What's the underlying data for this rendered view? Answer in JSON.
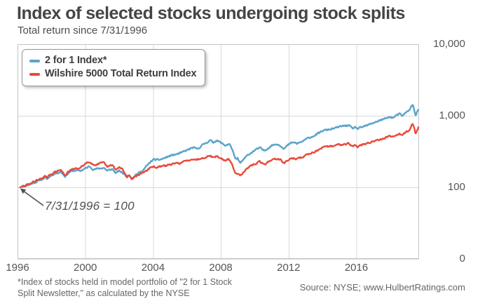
{
  "header": {
    "title": "Index of selected stocks undergoing stock splits",
    "subtitle": "Total return since 7/31/1996"
  },
  "legend": {
    "items": [
      {
        "label": "2 for 1 Index*",
        "color": "#5BA4C9"
      },
      {
        "label": "Wilshire 5000 Total Return Index",
        "color": "#E84A3B"
      }
    ]
  },
  "annotation": {
    "text": "7/31/1996 = 100"
  },
  "footer": {
    "note_line1": "*Index of stocks held in model portfolio of \"2 for 1 Stock",
    "note_line2": "Split Newsletter,\" as calculated by the NYSE",
    "source": "Source: NYSE; www.HulbertRatings.com"
  },
  "colors": {
    "grid": "#d9d9d9",
    "plot_border": "#c4c4c4",
    "annotation": "#4f4f4f"
  },
  "chart_data": {
    "type": "line",
    "title": "Index of selected stocks undergoing stock splits",
    "subtitle": "Total return since 7/31/1996",
    "y_scale": "log",
    "x_range": [
      1996,
      2019.7
    ],
    "y_log_range": [
      10,
      10000
    ],
    "grid": true,
    "legend_position": "top-left",
    "x_ticks": [
      {
        "value": 1996,
        "label": "1996"
      },
      {
        "value": 2000,
        "label": "2000"
      },
      {
        "value": 2004,
        "label": "2004"
      },
      {
        "value": 2008,
        "label": "2008"
      },
      {
        "value": 2012,
        "label": "2012"
      },
      {
        "value": 2016,
        "label": "2016"
      }
    ],
    "y_ticks": [
      {
        "value": 10000,
        "label": "10,000"
      },
      {
        "value": 1000,
        "label": "1,000"
      },
      {
        "value": 100,
        "label": "100"
      },
      {
        "value": 10,
        "label": "0"
      }
    ],
    "base_note": "7/31/1996 = 100",
    "series": [
      {
        "name": "2 for 1 Index*",
        "color": "#5BA4C9",
        "seed": 11,
        "points": [
          [
            1996.15,
            100
          ],
          [
            1996.6,
            107
          ],
          [
            1997,
            117
          ],
          [
            1997.4,
            128
          ],
          [
            1997.6,
            136
          ],
          [
            1997.75,
            130
          ],
          [
            1998,
            148
          ],
          [
            1998.3,
            158
          ],
          [
            1998.55,
            166
          ],
          [
            1998.8,
            143
          ],
          [
            1999.1,
            165
          ],
          [
            1999.4,
            172
          ],
          [
            1999.7,
            170
          ],
          [
            2000,
            183
          ],
          [
            2000.25,
            196
          ],
          [
            2000.5,
            178
          ],
          [
            2000.8,
            183
          ],
          [
            2001.1,
            188
          ],
          [
            2001.3,
            170
          ],
          [
            2001.6,
            180
          ],
          [
            2001.8,
            158
          ],
          [
            2002,
            170
          ],
          [
            2002.2,
            160
          ],
          [
            2002.45,
            140
          ],
          [
            2002.6,
            148
          ],
          [
            2002.75,
            136
          ],
          [
            2003,
            152
          ],
          [
            2003.3,
            165
          ],
          [
            2003.6,
            195
          ],
          [
            2004,
            245
          ],
          [
            2004.3,
            240
          ],
          [
            2004.6,
            252
          ],
          [
            2005,
            275
          ],
          [
            2005.4,
            290
          ],
          [
            2005.7,
            305
          ],
          [
            2006,
            330
          ],
          [
            2006.35,
            358
          ],
          [
            2006.6,
            342
          ],
          [
            2007,
            402
          ],
          [
            2007.35,
            452
          ],
          [
            2007.55,
            425
          ],
          [
            2007.75,
            455
          ],
          [
            2008,
            420
          ],
          [
            2008.25,
            385
          ],
          [
            2008.5,
            405
          ],
          [
            2008.7,
            330
          ],
          [
            2008.85,
            245
          ],
          [
            2009,
            252
          ],
          [
            2009.15,
            215
          ],
          [
            2009.4,
            255
          ],
          [
            2009.7,
            295
          ],
          [
            2010,
            330
          ],
          [
            2010.3,
            355
          ],
          [
            2010.55,
            325
          ],
          [
            2010.8,
            355
          ],
          [
            2011,
            385
          ],
          [
            2011.3,
            405
          ],
          [
            2011.55,
            380
          ],
          [
            2011.75,
            350
          ],
          [
            2012,
            395
          ],
          [
            2012.25,
            425
          ],
          [
            2012.5,
            408
          ],
          [
            2012.75,
            430
          ],
          [
            2013,
            465
          ],
          [
            2013.4,
            515
          ],
          [
            2013.8,
            570
          ],
          [
            2014,
            615
          ],
          [
            2014.4,
            645
          ],
          [
            2014.7,
            665
          ],
          [
            2015,
            700
          ],
          [
            2015.3,
            725
          ],
          [
            2015.55,
            735
          ],
          [
            2015.75,
            660
          ],
          [
            2015.95,
            690
          ],
          [
            2016.1,
            655
          ],
          [
            2016.4,
            700
          ],
          [
            2016.7,
            740
          ],
          [
            2017,
            800
          ],
          [
            2017.4,
            862
          ],
          [
            2017.8,
            925
          ],
          [
            2018,
            975
          ],
          [
            2018.12,
            930
          ],
          [
            2018.35,
            1000
          ],
          [
            2018.55,
            1060
          ],
          [
            2018.68,
            990
          ],
          [
            2018.9,
            1090
          ],
          [
            2019.1,
            1200
          ],
          [
            2019.33,
            1420
          ],
          [
            2019.42,
            1180
          ],
          [
            2019.5,
            1030
          ],
          [
            2019.58,
            1130
          ],
          [
            2019.66,
            1210
          ]
        ]
      },
      {
        "name": "Wilshire 5000 Total Return Index",
        "color": "#E84A3B",
        "seed": 29,
        "points": [
          [
            1996.15,
            100
          ],
          [
            1996.6,
            109
          ],
          [
            1997,
            121
          ],
          [
            1997.4,
            133
          ],
          [
            1997.6,
            142
          ],
          [
            1997.75,
            135
          ],
          [
            1998,
            155
          ],
          [
            1998.3,
            166
          ],
          [
            1998.55,
            175
          ],
          [
            1998.8,
            148
          ],
          [
            1999.1,
            172
          ],
          [
            1999.4,
            182
          ],
          [
            1999.7,
            185
          ],
          [
            2000,
            215
          ],
          [
            2000.25,
            231
          ],
          [
            2000.5,
            205
          ],
          [
            2000.8,
            212
          ],
          [
            2001.1,
            220
          ],
          [
            2001.3,
            192
          ],
          [
            2001.6,
            205
          ],
          [
            2001.8,
            175
          ],
          [
            2002,
            190
          ],
          [
            2002.2,
            178
          ],
          [
            2002.45,
            140
          ],
          [
            2002.6,
            150
          ],
          [
            2002.75,
            131
          ],
          [
            2003,
            145
          ],
          [
            2003.3,
            155
          ],
          [
            2003.6,
            172
          ],
          [
            2004,
            194
          ],
          [
            2004.3,
            190
          ],
          [
            2004.6,
            198
          ],
          [
            2005,
            208
          ],
          [
            2005.4,
            215
          ],
          [
            2005.7,
            222
          ],
          [
            2006,
            235
          ],
          [
            2006.35,
            252
          ],
          [
            2006.6,
            244
          ],
          [
            2007,
            262
          ],
          [
            2007.35,
            278
          ],
          [
            2007.55,
            262
          ],
          [
            2007.75,
            272
          ],
          [
            2008,
            255
          ],
          [
            2008.25,
            235
          ],
          [
            2008.5,
            245
          ],
          [
            2008.7,
            200
          ],
          [
            2008.85,
            155
          ],
          [
            2009,
            160
          ],
          [
            2009.15,
            148
          ],
          [
            2009.4,
            170
          ],
          [
            2009.7,
            192
          ],
          [
            2010,
            212
          ],
          [
            2010.3,
            228
          ],
          [
            2010.55,
            208
          ],
          [
            2010.8,
            228
          ],
          [
            2011,
            242
          ],
          [
            2011.3,
            252
          ],
          [
            2011.55,
            238
          ],
          [
            2011.75,
            218
          ],
          [
            2012,
            242
          ],
          [
            2012.25,
            258
          ],
          [
            2012.5,
            248
          ],
          [
            2012.75,
            260
          ],
          [
            2013,
            280
          ],
          [
            2013.4,
            308
          ],
          [
            2013.8,
            335
          ],
          [
            2014,
            355
          ],
          [
            2014.4,
            372
          ],
          [
            2014.7,
            382
          ],
          [
            2015,
            398
          ],
          [
            2015.3,
            408
          ],
          [
            2015.55,
            412
          ],
          [
            2015.75,
            372
          ],
          [
            2015.95,
            388
          ],
          [
            2016.1,
            368
          ],
          [
            2016.4,
            395
          ],
          [
            2016.7,
            415
          ],
          [
            2017,
            442
          ],
          [
            2017.4,
            472
          ],
          [
            2017.8,
            505
          ],
          [
            2018,
            530
          ],
          [
            2018.12,
            505
          ],
          [
            2018.35,
            540
          ],
          [
            2018.55,
            565
          ],
          [
            2018.68,
            530
          ],
          [
            2018.9,
            580
          ],
          [
            2019.1,
            630
          ],
          [
            2019.33,
            800
          ],
          [
            2019.42,
            660
          ],
          [
            2019.5,
            565
          ],
          [
            2019.58,
            630
          ],
          [
            2019.66,
            690
          ]
        ]
      }
    ]
  }
}
